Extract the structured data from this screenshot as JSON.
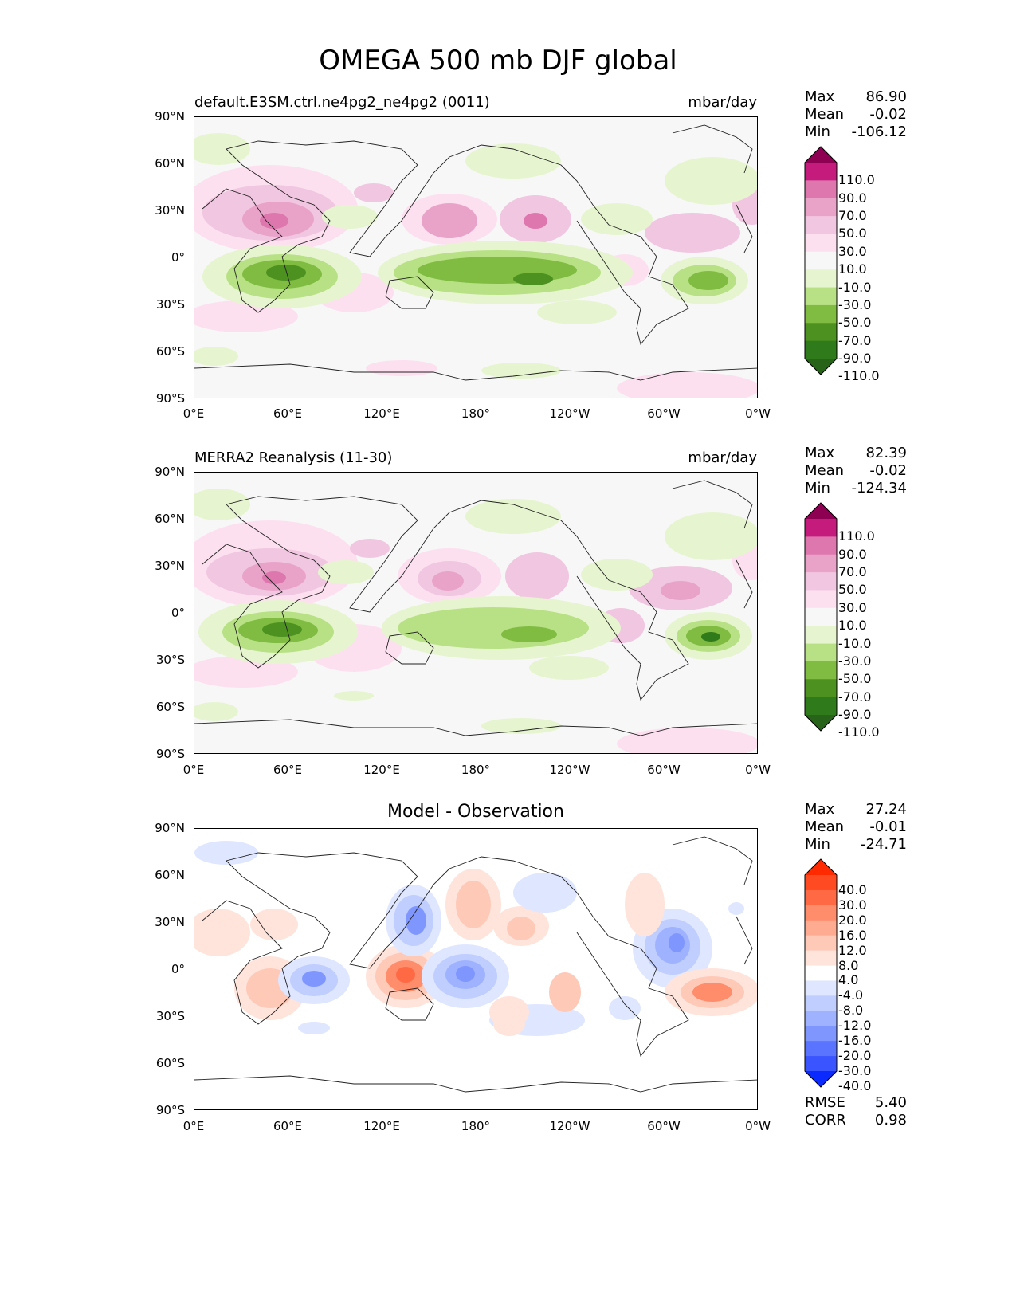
{
  "figure": {
    "title": "OMEGA 500 mb DJF global"
  },
  "axes": {
    "lat_ticks": [
      "90°N",
      "60°N",
      "30°N",
      "0°",
      "30°S",
      "60°S",
      "90°S"
    ],
    "lon_ticks": [
      "0°E",
      "60°E",
      "120°E",
      "180°",
      "120°W",
      "60°W",
      "0°W"
    ]
  },
  "panels": [
    {
      "id": "test",
      "label": "default.E3SM.ctrl.ne4pg2_ne4pg2 (0011)",
      "units": "mbar/day",
      "stats": [
        {
          "name": "Max",
          "value": "86.90"
        },
        {
          "name": "Mean",
          "value": "-0.02"
        },
        {
          "name": "Min",
          "value": "-106.12"
        }
      ],
      "colorbar": {
        "labels": [
          "110.0",
          "90.0",
          "70.0",
          "50.0",
          "30.0",
          "10.0",
          "-10.0",
          "-30.0",
          "-50.0",
          "-70.0",
          "-90.0",
          "-110.0"
        ],
        "colors": [
          "#8e0152",
          "#c51b7d",
          "#de77ae",
          "#e9a3c9",
          "#f1c6e0",
          "#fde0ef",
          "#f7f7f7",
          "#e6f5d0",
          "#b8e186",
          "#7fbc41",
          "#4d9221",
          "#2f7a1a",
          "#276419"
        ]
      }
    },
    {
      "id": "reference",
      "label": "MERRA2 Reanalysis (11-30)",
      "units": "mbar/day",
      "stats": [
        {
          "name": "Max",
          "value": "82.39"
        },
        {
          "name": "Mean",
          "value": "-0.02"
        },
        {
          "name": "Min",
          "value": "-124.34"
        }
      ],
      "colorbar": {
        "labels": [
          "110.0",
          "90.0",
          "70.0",
          "50.0",
          "30.0",
          "10.0",
          "-10.0",
          "-30.0",
          "-50.0",
          "-70.0",
          "-90.0",
          "-110.0"
        ],
        "colors": [
          "#8e0152",
          "#c51b7d",
          "#de77ae",
          "#e9a3c9",
          "#f1c6e0",
          "#fde0ef",
          "#f7f7f7",
          "#e6f5d0",
          "#b8e186",
          "#7fbc41",
          "#4d9221",
          "#2f7a1a",
          "#276419"
        ]
      }
    },
    {
      "id": "difference",
      "title": "Model - Observation",
      "stats": [
        {
          "name": "Max",
          "value": "27.24"
        },
        {
          "name": "Mean",
          "value": "-0.01"
        },
        {
          "name": "Min",
          "value": "-24.71"
        }
      ],
      "metrics": [
        {
          "name": "RMSE",
          "value": "5.40"
        },
        {
          "name": "CORR",
          "value": "0.98"
        }
      ],
      "colorbar": {
        "labels": [
          "40.0",
          "30.0",
          "20.0",
          "16.0",
          "12.0",
          "8.0",
          "4.0",
          "-4.0",
          "-8.0",
          "-12.0",
          "-16.0",
          "-20.0",
          "-30.0",
          "-40.0"
        ],
        "colors": [
          "#ff2a00",
          "#ff4a22",
          "#ff6a45",
          "#ff8c6a",
          "#ffab92",
          "#ffc9b8",
          "#ffe4dc",
          "#ffffff",
          "#dfe6ff",
          "#bfcdff",
          "#9fb2ff",
          "#7f96ff",
          "#5a74ff",
          "#3a55ff",
          "#0a2aff"
        ]
      }
    }
  ]
}
